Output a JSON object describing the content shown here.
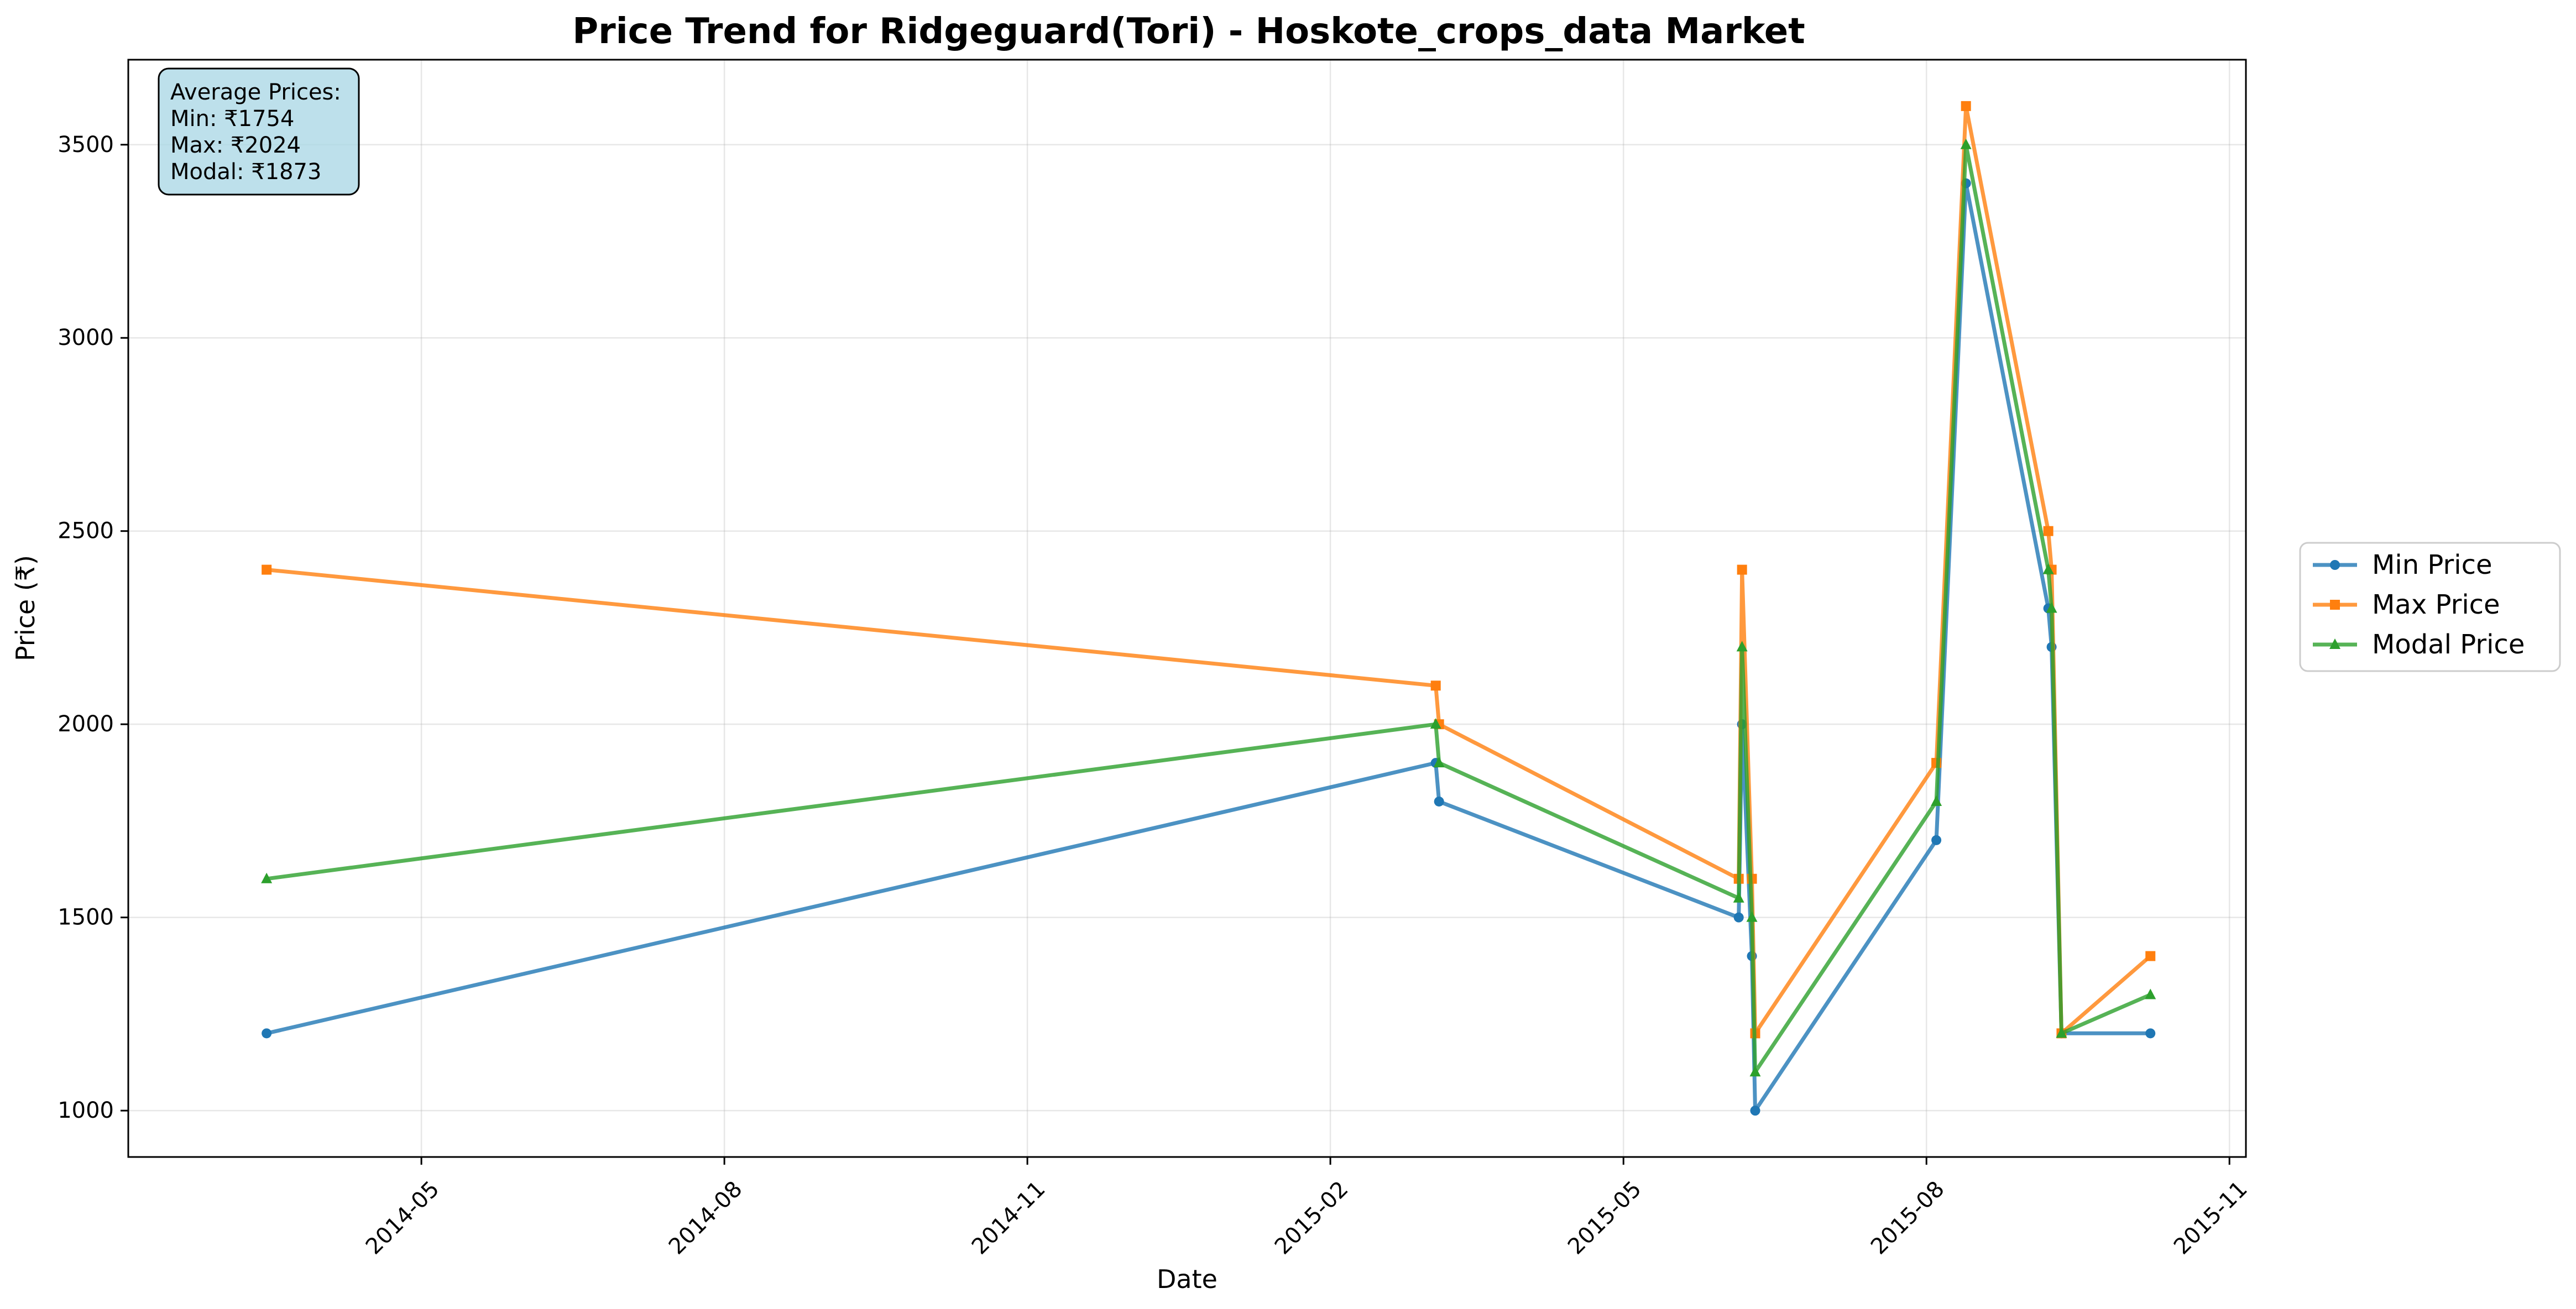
{
  "chart_data": {
    "type": "line",
    "title": "Price Trend for Ridgeguard(Tori) - Hoskote_crops_data Market",
    "xlabel": "Date",
    "ylabel": "Price (₹)",
    "x_axis_type": "date",
    "xlim": [
      "2014-02-01",
      "2015-11-06"
    ],
    "ylim": [
      880,
      3720
    ],
    "x_ticks": [
      {
        "date": "2014-05-01",
        "label": "2014-05"
      },
      {
        "date": "2014-08-01",
        "label": "2014-08"
      },
      {
        "date": "2014-11-01",
        "label": "2014-11"
      },
      {
        "date": "2015-02-01",
        "label": "2015-02"
      },
      {
        "date": "2015-05-01",
        "label": "2015-05"
      },
      {
        "date": "2015-08-01",
        "label": "2015-08"
      },
      {
        "date": "2015-11-01",
        "label": "2015-11"
      }
    ],
    "y_ticks": [
      1000,
      1500,
      2000,
      2500,
      3000,
      3500
    ],
    "grid": true,
    "legend_position": "outside-right",
    "x": [
      "2014-03-15",
      "2015-03-05",
      "2015-03-06",
      "2015-06-05",
      "2015-06-06",
      "2015-06-09",
      "2015-06-10",
      "2015-08-04",
      "2015-08-13",
      "2015-09-07",
      "2015-09-08",
      "2015-09-11",
      "2015-10-08"
    ],
    "series": [
      {
        "name": "Min Price",
        "color": "#1f77b4",
        "marker": "circle",
        "values": [
          1200,
          1900,
          1800,
          1500,
          2000,
          1400,
          1000,
          1700,
          3400,
          2300,
          2200,
          1200,
          1200
        ]
      },
      {
        "name": "Max Price",
        "color": "#ff7f0e",
        "marker": "square",
        "values": [
          2400,
          2100,
          2000,
          1600,
          2400,
          1600,
          1200,
          1900,
          3600,
          2500,
          2400,
          1200,
          1400
        ]
      },
      {
        "name": "Modal Price",
        "color": "#2ca02c",
        "marker": "triangle",
        "values": [
          1600,
          2000,
          1900,
          1550,
          2200,
          1500,
          1100,
          1800,
          3500,
          2400,
          2300,
          1200,
          1300
        ]
      }
    ],
    "annotation": {
      "lines": [
        "Average Prices:",
        "Min: ₹1754",
        "Max: ₹2024",
        "Modal: ₹1873"
      ],
      "background": "#add8e6"
    }
  }
}
